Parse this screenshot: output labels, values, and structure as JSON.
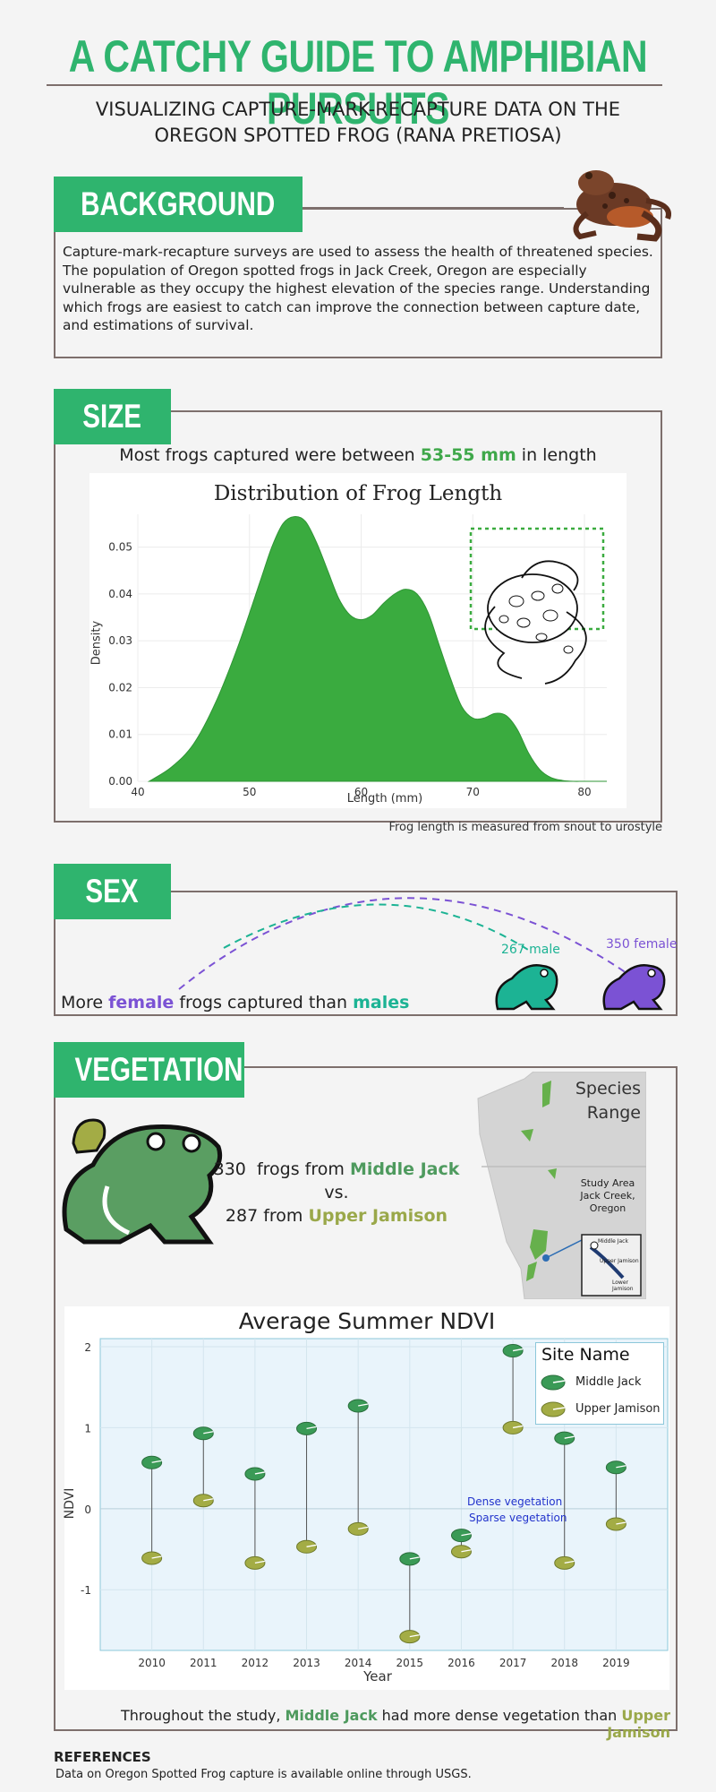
{
  "header": {
    "title": "A CATCHY GUIDE TO AMPHIBIAN PURSUITS",
    "subtitle_line1": "VISUALIZING CAPTURE-MARK-RECAPTURE DATA ON THE",
    "subtitle_line2": "OREGON SPOTTED FROG (RANA PRETIOSA)"
  },
  "background": {
    "tag": "BACKGROUND",
    "text": "Capture-mark-recapture surveys are used to assess the health of threatened species. The population of Oregon spotted frogs in Jack Creek, Oregon are especially vulnerable as they occupy the highest elevation of the species range. Understanding which frogs are easiest to catch can improve the connection between capture date, and estimations of survival."
  },
  "size": {
    "tag": "SIZE",
    "sentence_pre": "Most frogs captured were between ",
    "sentence_hl": "53-55 mm",
    "sentence_post": " in length",
    "footnote": "Frog length is measured from snout to urostyle"
  },
  "sex": {
    "tag": "SEX",
    "male_label": "267 male",
    "female_label": "350 female",
    "s1": "More ",
    "s2": "female",
    "s3": " frogs captured than ",
    "s4": "males"
  },
  "vegetation": {
    "tag": "VEGETATION",
    "count_mj": "330",
    "frogs_from": "frogs from",
    "site_mj": "Middle Jack",
    "vs": "vs.",
    "count_uj": "287 from",
    "site_uj": "Upper Jamison",
    "map_title1": "Species",
    "map_title2": "Range",
    "study_area1": "Study Area",
    "study_area2": "Jack Creek, Oregon",
    "inset_mj": "Middle Jack",
    "inset_uj": "Upper Jamison",
    "inset_lj": "Lower Jamison",
    "summary_pre": "Throughout the study, ",
    "summary_mj": "Middle Jack",
    "summary_mid": " had more dense vegetation than ",
    "summary_uj": "Upper Jamison"
  },
  "references": {
    "heading": "REFERENCES",
    "text": "Data on Oregon Spotted Frog capture is available online through USGS."
  },
  "colors": {
    "brand_green": "#2fb46e",
    "density_fill": "#3aab3f",
    "female": "#7b52d4",
    "male": "#1cb394",
    "middle_jack": "#3a9a56",
    "upper_jamison": "#a3ac45"
  },
  "chart_data": [
    {
      "type": "area",
      "title": "Distribution of Frog Length",
      "xlabel": "Length (mm)",
      "ylabel": "Density",
      "xlim": [
        40,
        82
      ],
      "ylim": [
        0,
        0.057
      ],
      "xticks": [
        40,
        50,
        60,
        70,
        80
      ],
      "yticks": [
        0.0,
        0.01,
        0.02,
        0.03,
        0.04,
        0.05
      ],
      "x": [
        41,
        43,
        45,
        47,
        49,
        51,
        52,
        53,
        54,
        55,
        56,
        57,
        58,
        59,
        60,
        61,
        62,
        63,
        64,
        65,
        66,
        67,
        68,
        69,
        70,
        71,
        72,
        73,
        74,
        75,
        76,
        77,
        78,
        79,
        80,
        82
      ],
      "y": [
        0.0,
        0.003,
        0.008,
        0.017,
        0.029,
        0.043,
        0.05,
        0.055,
        0.0565,
        0.0555,
        0.051,
        0.045,
        0.039,
        0.0355,
        0.0345,
        0.0355,
        0.038,
        0.04,
        0.041,
        0.04,
        0.036,
        0.029,
        0.022,
        0.016,
        0.0135,
        0.0135,
        0.0145,
        0.014,
        0.011,
        0.006,
        0.0025,
        0.0008,
        0.0002,
        0.0,
        0.0,
        0.0
      ],
      "grid": true
    },
    {
      "type": "scatter",
      "title": "Average Summer NDVI",
      "xlabel": "Year",
      "ylabel": "NDVI",
      "xlim": [
        2009,
        2020
      ],
      "ylim": [
        -1.75,
        2.1
      ],
      "yticks": [
        -1,
        0,
        1,
        2
      ],
      "legend_title": "Site Name",
      "legend_position": "top-right",
      "categories": [
        2010,
        2011,
        2012,
        2013,
        2014,
        2015,
        2016,
        2017,
        2018,
        2019
      ],
      "series": [
        {
          "name": "Middle Jack",
          "values": [
            0.57,
            0.93,
            0.43,
            0.99,
            1.27,
            -0.62,
            -0.33,
            1.95,
            0.87,
            0.51
          ]
        },
        {
          "name": "Upper Jamison",
          "values": [
            -0.61,
            0.1,
            -0.67,
            -0.47,
            -0.25,
            -1.58,
            -0.53,
            1.0,
            -0.67,
            -0.19
          ]
        }
      ],
      "annotations": [
        "Dense vegetation",
        "Sparse vegetation"
      ],
      "grid": true
    }
  ]
}
